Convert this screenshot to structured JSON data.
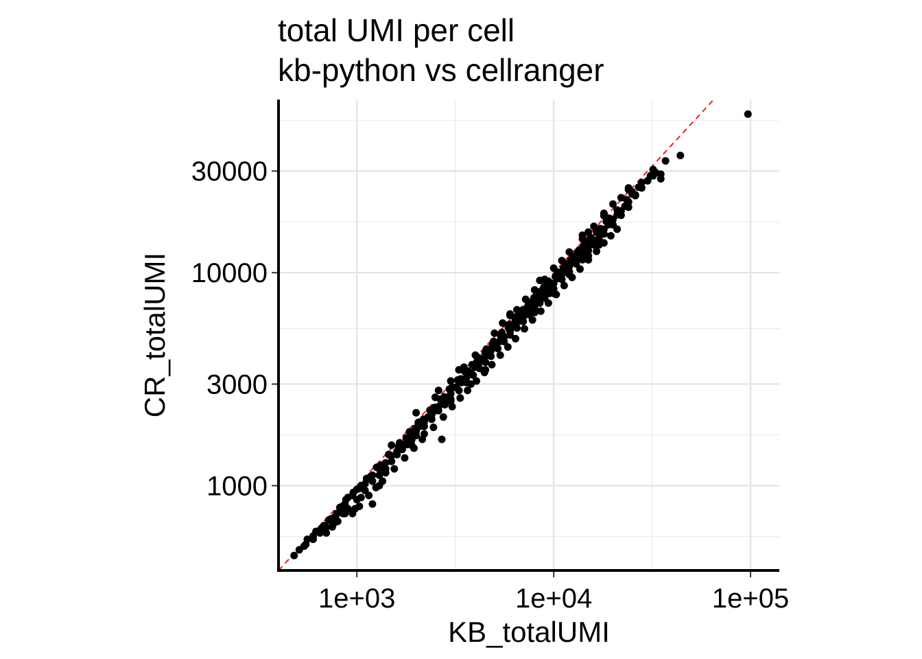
{
  "chart_data": {
    "type": "scatter",
    "title": "total UMI per cell",
    "subtitle": "kb-python vs cellranger",
    "xlabel": "KB_totalUMI",
    "ylabel": "CR_totalUMI",
    "x_scale": "log10",
    "y_scale": "log10",
    "xlim": [
      400,
      140000
    ],
    "ylim": [
      400,
      65000
    ],
    "x_ticks": [
      {
        "value": 1000,
        "label": "1e+03"
      },
      {
        "value": 10000,
        "label": "1e+04"
      },
      {
        "value": 100000,
        "label": "1e+05"
      }
    ],
    "y_ticks": [
      {
        "value": 1000,
        "label": "1000"
      },
      {
        "value": 3000,
        "label": "3000"
      },
      {
        "value": 10000,
        "label": "10000"
      },
      {
        "value": 30000,
        "label": "30000"
      }
    ],
    "grid": true,
    "reference_line": {
      "type": "identity",
      "color": "#e8211c",
      "style": "dashed"
    },
    "point_color": "#000000",
    "series": [
      {
        "points": [
          [
            480,
            470
          ],
          [
            510,
            500
          ],
          [
            540,
            520
          ],
          [
            560,
            560
          ],
          [
            600,
            580
          ],
          [
            620,
            610
          ],
          [
            650,
            600
          ],
          [
            700,
            640
          ],
          [
            720,
            690
          ],
          [
            750,
            680
          ],
          [
            780,
            720
          ],
          [
            820,
            760
          ],
          [
            850,
            800
          ],
          [
            880,
            860
          ],
          [
            900,
            880
          ],
          [
            950,
            900
          ],
          [
            1000,
            960
          ],
          [
            1050,
            1000
          ],
          [
            1100,
            1020
          ],
          [
            1150,
            1080
          ],
          [
            1200,
            1120
          ],
          [
            1300,
            1200
          ],
          [
            1400,
            1280
          ],
          [
            1500,
            1380
          ],
          [
            1600,
            1450
          ],
          [
            1700,
            1560
          ],
          [
            1800,
            1650
          ],
          [
            1900,
            1700
          ],
          [
            2000,
            1800
          ],
          [
            2100,
            1900
          ],
          [
            2200,
            2000
          ],
          [
            2300,
            2100
          ],
          [
            2400,
            2150
          ],
          [
            2500,
            2250
          ],
          [
            2600,
            2350
          ],
          [
            2700,
            2450
          ],
          [
            2800,
            2500
          ],
          [
            2900,
            2600
          ],
          [
            3000,
            2700
          ],
          [
            3200,
            2900
          ],
          [
            3400,
            3050
          ],
          [
            3600,
            3200
          ],
          [
            3800,
            3400
          ],
          [
            4000,
            3600
          ],
          [
            4200,
            3800
          ],
          [
            4400,
            3950
          ],
          [
            4600,
            4100
          ],
          [
            4800,
            4300
          ],
          [
            5000,
            4500
          ],
          [
            5300,
            4750
          ],
          [
            5600,
            5000
          ],
          [
            6000,
            5300
          ],
          [
            6300,
            5600
          ],
          [
            6600,
            5900
          ],
          [
            7000,
            6200
          ],
          [
            7400,
            6600
          ],
          [
            7800,
            7000
          ],
          [
            8200,
            7300
          ],
          [
            8600,
            7700
          ],
          [
            9000,
            8000
          ],
          [
            9500,
            8500
          ],
          [
            10000,
            8900
          ],
          [
            10500,
            9400
          ],
          [
            11000,
            9800
          ],
          [
            11500,
            10300
          ],
          [
            12000,
            10700
          ],
          [
            13000,
            11500
          ],
          [
            14000,
            12400
          ],
          [
            15000,
            13300
          ],
          [
            16000,
            14200
          ],
          [
            17000,
            15100
          ],
          [
            18000,
            16000
          ],
          [
            19000,
            16800
          ],
          [
            20000,
            17800
          ],
          [
            21000,
            18700
          ],
          [
            22000,
            19500
          ],
          [
            23000,
            20500
          ],
          [
            24000,
            21500
          ],
          [
            26000,
            23000
          ],
          [
            28000,
            25000
          ],
          [
            30000,
            27000
          ],
          [
            32000,
            28500
          ],
          [
            700,
            600
          ],
          [
            750,
            640
          ],
          [
            800,
            680
          ],
          [
            850,
            740
          ],
          [
            900,
            780
          ],
          [
            1000,
            860
          ],
          [
            1100,
            950
          ],
          [
            1200,
            1050
          ],
          [
            1300,
            1120
          ],
          [
            1400,
            1200
          ],
          [
            1500,
            1300
          ],
          [
            1600,
            1400
          ],
          [
            1700,
            1480
          ],
          [
            1800,
            1560
          ],
          [
            1900,
            1640
          ],
          [
            2000,
            1720
          ],
          [
            2200,
            1900
          ],
          [
            2400,
            2050
          ],
          [
            2600,
            2250
          ],
          [
            2800,
            2400
          ],
          [
            3000,
            2550
          ],
          [
            3300,
            2800
          ],
          [
            3600,
            3050
          ],
          [
            3900,
            3300
          ],
          [
            4200,
            3550
          ],
          [
            4500,
            3800
          ],
          [
            4800,
            4050
          ],
          [
            5200,
            4400
          ],
          [
            5600,
            4750
          ],
          [
            6000,
            5100
          ],
          [
            6500,
            5500
          ],
          [
            7000,
            5900
          ],
          [
            7500,
            6350
          ],
          [
            8000,
            6800
          ],
          [
            8500,
            7200
          ],
          [
            9000,
            7600
          ],
          [
            9500,
            8000
          ],
          [
            10000,
            8400
          ],
          [
            11000,
            9300
          ],
          [
            12000,
            10100
          ],
          [
            13000,
            11000
          ],
          [
            14000,
            11800
          ],
          [
            15000,
            12700
          ],
          [
            16000,
            13500
          ],
          [
            17000,
            14300
          ],
          [
            18000,
            15200
          ],
          [
            20000,
            16800
          ],
          [
            22000,
            18600
          ],
          [
            24000,
            20300
          ],
          [
            600,
            560
          ],
          [
            660,
            630
          ],
          [
            740,
            700
          ],
          [
            820,
            790
          ],
          [
            960,
            930
          ],
          [
            1120,
            1080
          ],
          [
            1260,
            1220
          ],
          [
            1450,
            1400
          ],
          [
            1650,
            1590
          ],
          [
            1850,
            1790
          ],
          [
            2050,
            1980
          ],
          [
            2350,
            2260
          ],
          [
            2650,
            2550
          ],
          [
            2950,
            2840
          ],
          [
            3250,
            3130
          ],
          [
            3550,
            3420
          ],
          [
            3850,
            3700
          ],
          [
            4150,
            3990
          ],
          [
            4550,
            4380
          ],
          [
            4950,
            4760
          ],
          [
            5450,
            5240
          ],
          [
            5950,
            5720
          ],
          [
            6450,
            6200
          ],
          [
            6950,
            6680
          ],
          [
            7450,
            7160
          ],
          [
            7950,
            7640
          ],
          [
            8450,
            8120
          ],
          [
            8950,
            8600
          ],
          [
            9450,
            9080
          ],
          [
            10500,
            10050
          ],
          [
            11500,
            11000
          ],
          [
            12500,
            11900
          ],
          [
            13500,
            12800
          ],
          [
            14500,
            13700
          ],
          [
            15500,
            14600
          ],
          [
            16500,
            15500
          ],
          [
            18500,
            17400
          ],
          [
            21000,
            19700
          ],
          [
            23500,
            22000
          ],
          [
            27000,
            25200
          ],
          [
            1150,
            900
          ],
          [
            1250,
            980
          ],
          [
            1350,
            1050
          ],
          [
            1550,
            1200
          ],
          [
            1750,
            1350
          ],
          [
            1950,
            1500
          ],
          [
            2150,
            1650
          ],
          [
            2450,
            1880
          ],
          [
            2750,
            2100
          ],
          [
            3050,
            2350
          ],
          [
            3350,
            2580
          ],
          [
            3650,
            2800
          ],
          [
            4050,
            3100
          ],
          [
            4450,
            3400
          ],
          [
            4850,
            3700
          ],
          [
            5350,
            4100
          ],
          [
            5850,
            4480
          ],
          [
            6400,
            4900
          ],
          [
            7100,
            5450
          ],
          [
            7800,
            6000
          ],
          [
            8600,
            6600
          ],
          [
            9400,
            7200
          ],
          [
            10300,
            7900
          ],
          [
            11300,
            8700
          ],
          [
            12400,
            9500
          ],
          [
            13600,
            10400
          ],
          [
            15000,
            11500
          ],
          [
            16500,
            12600
          ],
          [
            18000,
            13800
          ],
          [
            19500,
            14900
          ],
          [
            21000,
            16000
          ],
          [
            550,
            530
          ],
          [
            680,
            650
          ],
          [
            790,
            740
          ],
          [
            870,
            820
          ],
          [
            1030,
            970
          ],
          [
            1180,
            1110
          ],
          [
            1330,
            1250
          ],
          [
            1480,
            1390
          ],
          [
            1630,
            1530
          ],
          [
            1780,
            1670
          ],
          [
            1980,
            1860
          ],
          [
            2180,
            2050
          ],
          [
            2480,
            2330
          ],
          [
            2780,
            2610
          ],
          [
            3080,
            2890
          ],
          [
            3380,
            3170
          ],
          [
            3680,
            3450
          ],
          [
            4080,
            3830
          ],
          [
            4480,
            4200
          ],
          [
            4880,
            4580
          ],
          [
            5380,
            5050
          ],
          [
            5880,
            5520
          ],
          [
            6380,
            5990
          ],
          [
            6880,
            6460
          ],
          [
            7380,
            6930
          ],
          [
            7880,
            7400
          ],
          [
            8380,
            7870
          ],
          [
            8880,
            8340
          ],
          [
            9380,
            8810
          ],
          [
            10200,
            9580
          ],
          [
            11200,
            10500
          ],
          [
            12200,
            11450
          ],
          [
            13200,
            12400
          ],
          [
            14200,
            13300
          ],
          [
            15200,
            14250
          ],
          [
            17200,
            16100
          ],
          [
            19200,
            18000
          ],
          [
            25000,
            23400
          ],
          [
            5000,
            5200
          ],
          [
            5500,
            5800
          ],
          [
            6000,
            6300
          ],
          [
            6500,
            6700
          ],
          [
            7200,
            7500
          ],
          [
            8000,
            8300
          ],
          [
            9000,
            9300
          ],
          [
            10000,
            10500
          ],
          [
            11000,
            11400
          ],
          [
            12000,
            12500
          ],
          [
            14000,
            14400
          ],
          [
            16000,
            16500
          ],
          [
            3000,
            3100
          ],
          [
            3500,
            3600
          ],
          [
            4000,
            4100
          ],
          [
            2500,
            2600
          ],
          [
            20000,
            21000
          ],
          [
            18000,
            18500
          ],
          [
            22000,
            22500
          ],
          [
            24000,
            24500
          ],
          [
            8000,
            6500
          ],
          [
            10000,
            8000
          ],
          [
            12000,
            9800
          ],
          [
            15000,
            12000
          ],
          [
            17000,
            13500
          ],
          [
            2000,
            2200
          ],
          [
            2600,
            2800
          ],
          [
            3300,
            3500
          ],
          [
            6000,
            6400
          ],
          [
            8500,
            9200
          ],
          [
            14000,
            15000
          ],
          [
            18000,
            19000
          ],
          [
            3000,
            2500
          ],
          [
            3800,
            3000
          ],
          [
            4500,
            3500
          ],
          [
            2200,
            1750
          ],
          [
            1900,
            1550
          ],
          [
            2700,
            1650
          ],
          [
            980,
            780
          ],
          [
            770,
            670
          ],
          [
            870,
            740
          ],
          [
            1200,
            820
          ],
          [
            1030,
            800
          ],
          [
            950,
            740
          ],
          [
            1400,
            1150
          ],
          [
            1300,
            1000
          ],
          [
            1800,
            1600
          ],
          [
            15000,
            15500
          ],
          [
            24000,
            25000
          ],
          [
            14000,
            11500
          ],
          [
            1050,
            880
          ],
          [
            1500,
            1550
          ],
          [
            15000,
            11500
          ],
          [
            11000,
            10000
          ],
          [
            12000,
            11000
          ],
          [
            25000,
            24000
          ],
          [
            26000,
            23200
          ],
          [
            28000,
            26500
          ],
          [
            31000,
            28500
          ],
          [
            33000,
            29500
          ],
          [
            32000,
            30500
          ],
          [
            35000,
            29000
          ],
          [
            35000,
            27600
          ],
          [
            37000,
            33500
          ],
          [
            44000,
            35500
          ],
          [
            97000,
            55500
          ]
        ]
      }
    ]
  }
}
